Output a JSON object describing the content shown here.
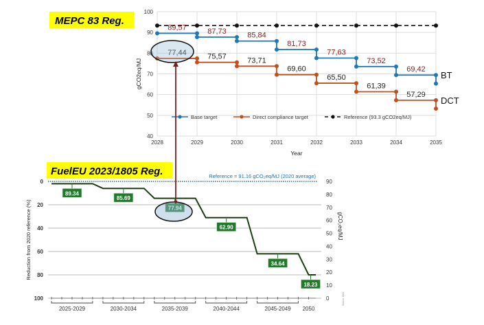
{
  "colors": {
    "base": "#1f77b4",
    "dct": "#c0501f",
    "reference": "#111111",
    "red_label": "#8b1a1a",
    "fueleu_line": "#1d3d12",
    "fueleu_box": "#217a2a",
    "highlight": "#ffff00",
    "ref_dotted": "#2a6e9e",
    "arrow": "#7a1f1f"
  },
  "titles": {
    "mepc": "MEPC 83 Reg.",
    "fueleu": "FuelEU 2023/1805 Reg."
  },
  "chart_data": [
    {
      "type": "line",
      "name": "MEPC 83",
      "xlabel": "Year",
      "ylabel": "gCO2eq/MJ",
      "xlim": [
        2028,
        2035
      ],
      "ylim": [
        40,
        100
      ],
      "x_ticks": [
        "2028",
        "2029",
        "2030",
        "2031",
        "2032",
        "2033",
        "2034",
        "2035"
      ],
      "y_ticks": [
        "40",
        "50",
        "60",
        "70",
        "80",
        "90",
        "100"
      ],
      "grid": true,
      "legend": [
        "Base target",
        "Direct compliance target",
        "Reference (93.3 gCO2eq/MJ)"
      ],
      "legend_position": "bottom-inside",
      "series": [
        {
          "name": "Base target",
          "end_label": "BT",
          "steps": [
            89.57,
            87.73,
            85.84,
            81.73,
            77.63,
            73.52,
            69.42
          ],
          "final": 65.3,
          "labels": [
            "89,57",
            "87,73",
            "85,84",
            "81,73",
            "77,63",
            "73,52",
            "69,42"
          ]
        },
        {
          "name": "Direct compliance target",
          "end_label": "DCT",
          "steps": [
            77.44,
            75.57,
            73.71,
            69.6,
            65.5,
            61.39,
            57.29
          ],
          "final": 53.2,
          "labels": [
            "77,44",
            "75,57",
            "73,71",
            "69,60",
            "65,50",
            "61,39",
            "57,29"
          ]
        },
        {
          "name": "Reference (93.3 gCO2eq/MJ)",
          "value": 93.3
        }
      ]
    },
    {
      "type": "line",
      "name": "FuelEU",
      "ylabel_left": "Reduction from 2020 reference (%)",
      "ylabel_right": "gCO₂eq/MJ",
      "ylim_left": [
        0,
        100
      ],
      "ylim_right": [
        0,
        90
      ],
      "y_ticks_left": [
        "0",
        "20",
        "40",
        "60",
        "80",
        "100"
      ],
      "y_ticks_right": [
        "0",
        "10",
        "20",
        "30",
        "40",
        "50",
        "60",
        "70",
        "80",
        "90"
      ],
      "x_groups": [
        "2025-2029",
        "2030-2034",
        "2035-2039",
        "2040-2044",
        "2045-2049",
        "2050"
      ],
      "xlim": [
        2025,
        2050.7
      ],
      "reference_note": "Reference = 91.16 gCO₂eq/MJ (2020 average)",
      "source_note": "Source: DNV",
      "steps": [
        {
          "start": 2025,
          "end": 2029,
          "reduction": 2,
          "label": "89.34"
        },
        {
          "start": 2030,
          "end": 2034,
          "reduction": 6,
          "label": "85.69"
        },
        {
          "start": 2035,
          "end": 2039,
          "reduction": 14.5,
          "label": "77.94"
        },
        {
          "start": 2040,
          "end": 2044,
          "reduction": 31,
          "label": "62.90"
        },
        {
          "start": 2045,
          "end": 2049,
          "reduction": 62,
          "label": "34.64"
        },
        {
          "start": 2050,
          "end": 2050.7,
          "reduction": 80,
          "label": "18.23"
        }
      ]
    }
  ]
}
